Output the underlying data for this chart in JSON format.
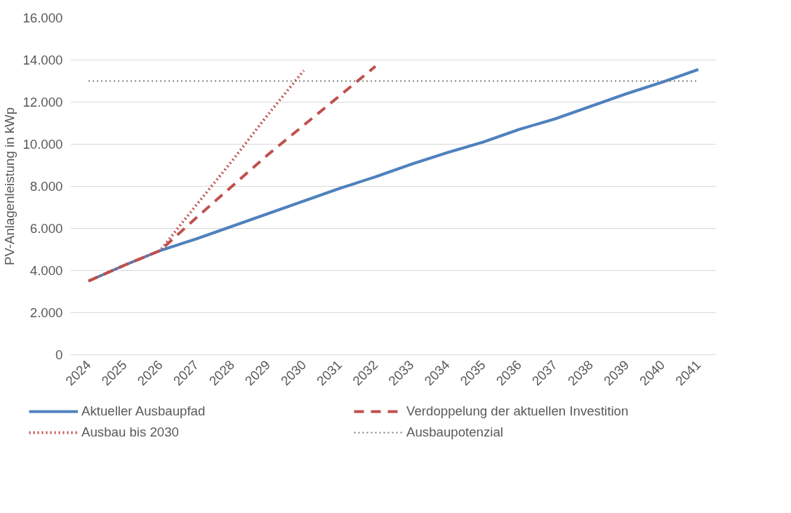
{
  "chart_data": {
    "type": "line",
    "ylabel": "PV-Anlagenleistung in kWp",
    "categories": [
      "2024",
      "2025",
      "2026",
      "2027",
      "2028",
      "2029",
      "2030",
      "2031",
      "2032",
      "2033",
      "2034",
      "2035",
      "2036",
      "2037",
      "2038",
      "2039",
      "2040",
      "2041"
    ],
    "series": [
      {
        "name": "Aktueller Ausbaupfad",
        "color": "#4f81bd",
        "line_style": "solid",
        "values": [
          3500,
          4250,
          4950,
          5500,
          6100,
          6700,
          7300,
          7900,
          8450,
          9050,
          9600,
          10100,
          10700,
          11200,
          11800,
          12400,
          12950,
          13550
        ]
      },
      {
        "name": "Verdoppelung der aktuellen Investition",
        "color": "#c0504d",
        "line_style": "dashed",
        "values": [
          3500,
          4250,
          4950,
          6500,
          8000,
          9500,
          10900,
          12300,
          13700,
          null,
          null,
          null,
          null,
          null,
          null,
          null,
          null,
          null
        ]
      },
      {
        "name": "Ausbau bis 2030",
        "color": "#c0504d",
        "line_style": "dotted",
        "values": [
          3500,
          4250,
          4950,
          7100,
          9200,
          11400,
          13500,
          null,
          null,
          null,
          null,
          null,
          null,
          null,
          null,
          null,
          null,
          null
        ]
      },
      {
        "name": "Ausbaupotenzial",
        "color": "#7f7f7f",
        "line_style": "dotted",
        "values": [
          13000,
          13000,
          13000,
          13000,
          13000,
          13000,
          13000,
          13000,
          13000,
          13000,
          13000,
          13000,
          13000,
          13000,
          13000,
          13000,
          13000,
          13000
        ]
      }
    ],
    "ylim": [
      0,
      16000
    ],
    "yticks": [
      {
        "value": 0,
        "label": "0"
      },
      {
        "value": 2000,
        "label": "2.000"
      },
      {
        "value": 4000,
        "label": "4.000"
      },
      {
        "value": 6000,
        "label": "6.000"
      },
      {
        "value": 8000,
        "label": "8.000"
      },
      {
        "value": 10000,
        "label": "10.000"
      },
      {
        "value": 12000,
        "label": "12.000"
      },
      {
        "value": 14000,
        "label": "14.000"
      },
      {
        "value": 16000,
        "label": "16.000"
      }
    ],
    "grid": "y",
    "legend": "bottom",
    "marker": "none"
  }
}
